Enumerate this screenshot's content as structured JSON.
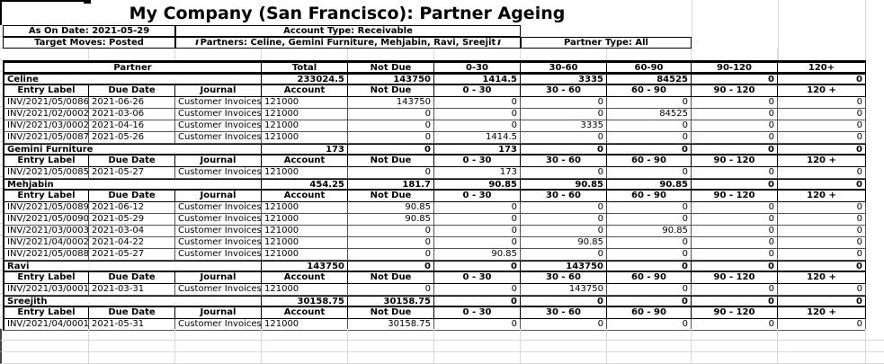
{
  "title": "My Company (San Francisco): Partner Ageing",
  "info": {
    "as_on_date": "As On Date: 2021-05-29",
    "account_type": "Account Type: Receivable",
    "target_moves": "Target Moves: Posted",
    "partners": "Partners: Celine, Gemini Furniture, Mehjabin, Ravi, Sreejit",
    "partner_type": "Partner Type: All"
  },
  "colors": {
    "text": "#000000",
    "table_border": "#000000",
    "grid_light": "#d9d9d9"
  },
  "table": {
    "main_header": [
      "Partner",
      "Total",
      "Not Due",
      "0-30",
      "30-60",
      "60-90",
      "90-120",
      "120+"
    ],
    "sub_header": [
      "Entry Label",
      "Due Date",
      "Journal",
      "Account",
      "Not Due",
      "0 - 30",
      "30 - 60",
      "60 - 90",
      "90 - 120",
      "120 +"
    ],
    "groups": [
      {
        "partner": "Celine",
        "summary": [
          "233024.5",
          "143750",
          "1414.5",
          "3335",
          "84525",
          "0",
          "0"
        ],
        "entries": [
          [
            "INV/2021/05/0086",
            "2021-06-26",
            "Customer Invoices",
            "121000",
            "143750",
            "0",
            "0",
            "0",
            "0",
            "0"
          ],
          [
            "INV/2021/02/0002",
            "2021-03-06",
            "Customer Invoices",
            "121000",
            "0",
            "0",
            "0",
            "84525",
            "0",
            "0"
          ],
          [
            "INV/2021/03/0002",
            "2021-04-16",
            "Customer Invoices",
            "121000",
            "0",
            "0",
            "3335",
            "0",
            "0",
            "0"
          ],
          [
            "INV/2021/05/0087",
            "2021-05-26",
            "Customer Invoices",
            "121000",
            "0",
            "1414.5",
            "0",
            "0",
            "0",
            "0"
          ]
        ]
      },
      {
        "partner": "Gemini Furniture",
        "summary": [
          "173",
          "0",
          "173",
          "0",
          "0",
          "0",
          "0"
        ],
        "entries": [
          [
            "INV/2021/05/0085",
            "2021-05-27",
            "Customer Invoices",
            "121000",
            "0",
            "173",
            "0",
            "0",
            "0",
            "0"
          ]
        ]
      },
      {
        "partner": "Mehjabin",
        "summary": [
          "454.25",
          "181.7",
          "90.85",
          "90.85",
          "90.85",
          "0",
          "0"
        ],
        "entries": [
          [
            "INV/2021/05/0089",
            "2021-06-12",
            "Customer Invoices",
            "121000",
            "90.85",
            "0",
            "0",
            "0",
            "0",
            "0"
          ],
          [
            "INV/2021/05/0090",
            "2021-05-29",
            "Customer Invoices",
            "121000",
            "90.85",
            "0",
            "0",
            "0",
            "0",
            "0"
          ],
          [
            "INV/2021/03/0003",
            "2021-03-04",
            "Customer Invoices",
            "121000",
            "0",
            "0",
            "0",
            "90.85",
            "0",
            "0"
          ],
          [
            "INV/2021/04/0002",
            "2021-04-22",
            "Customer Invoices",
            "121000",
            "0",
            "0",
            "90.85",
            "0",
            "0",
            "0"
          ],
          [
            "INV/2021/05/0088",
            "2021-05-27",
            "Customer Invoices",
            "121000",
            "0",
            "90.85",
            "0",
            "0",
            "0",
            "0"
          ]
        ]
      },
      {
        "partner": "Ravi",
        "summary": [
          "143750",
          "0",
          "0",
          "143750",
          "0",
          "0",
          "0"
        ],
        "entries": [
          [
            "INV/2021/03/0001",
            "2021-03-31",
            "Customer Invoices",
            "121000",
            "0",
            "0",
            "143750",
            "0",
            "0",
            "0"
          ]
        ]
      },
      {
        "partner": "Sreejith",
        "summary": [
          "30158.75",
          "30158.75",
          "0",
          "0",
          "0",
          "0",
          "0"
        ],
        "entries": [
          [
            "INV/2021/04/0001",
            "2021-05-31",
            "Customer Invoices",
            "121000",
            "30158.75",
            "0",
            "0",
            "0",
            "0",
            "0"
          ]
        ]
      }
    ]
  }
}
